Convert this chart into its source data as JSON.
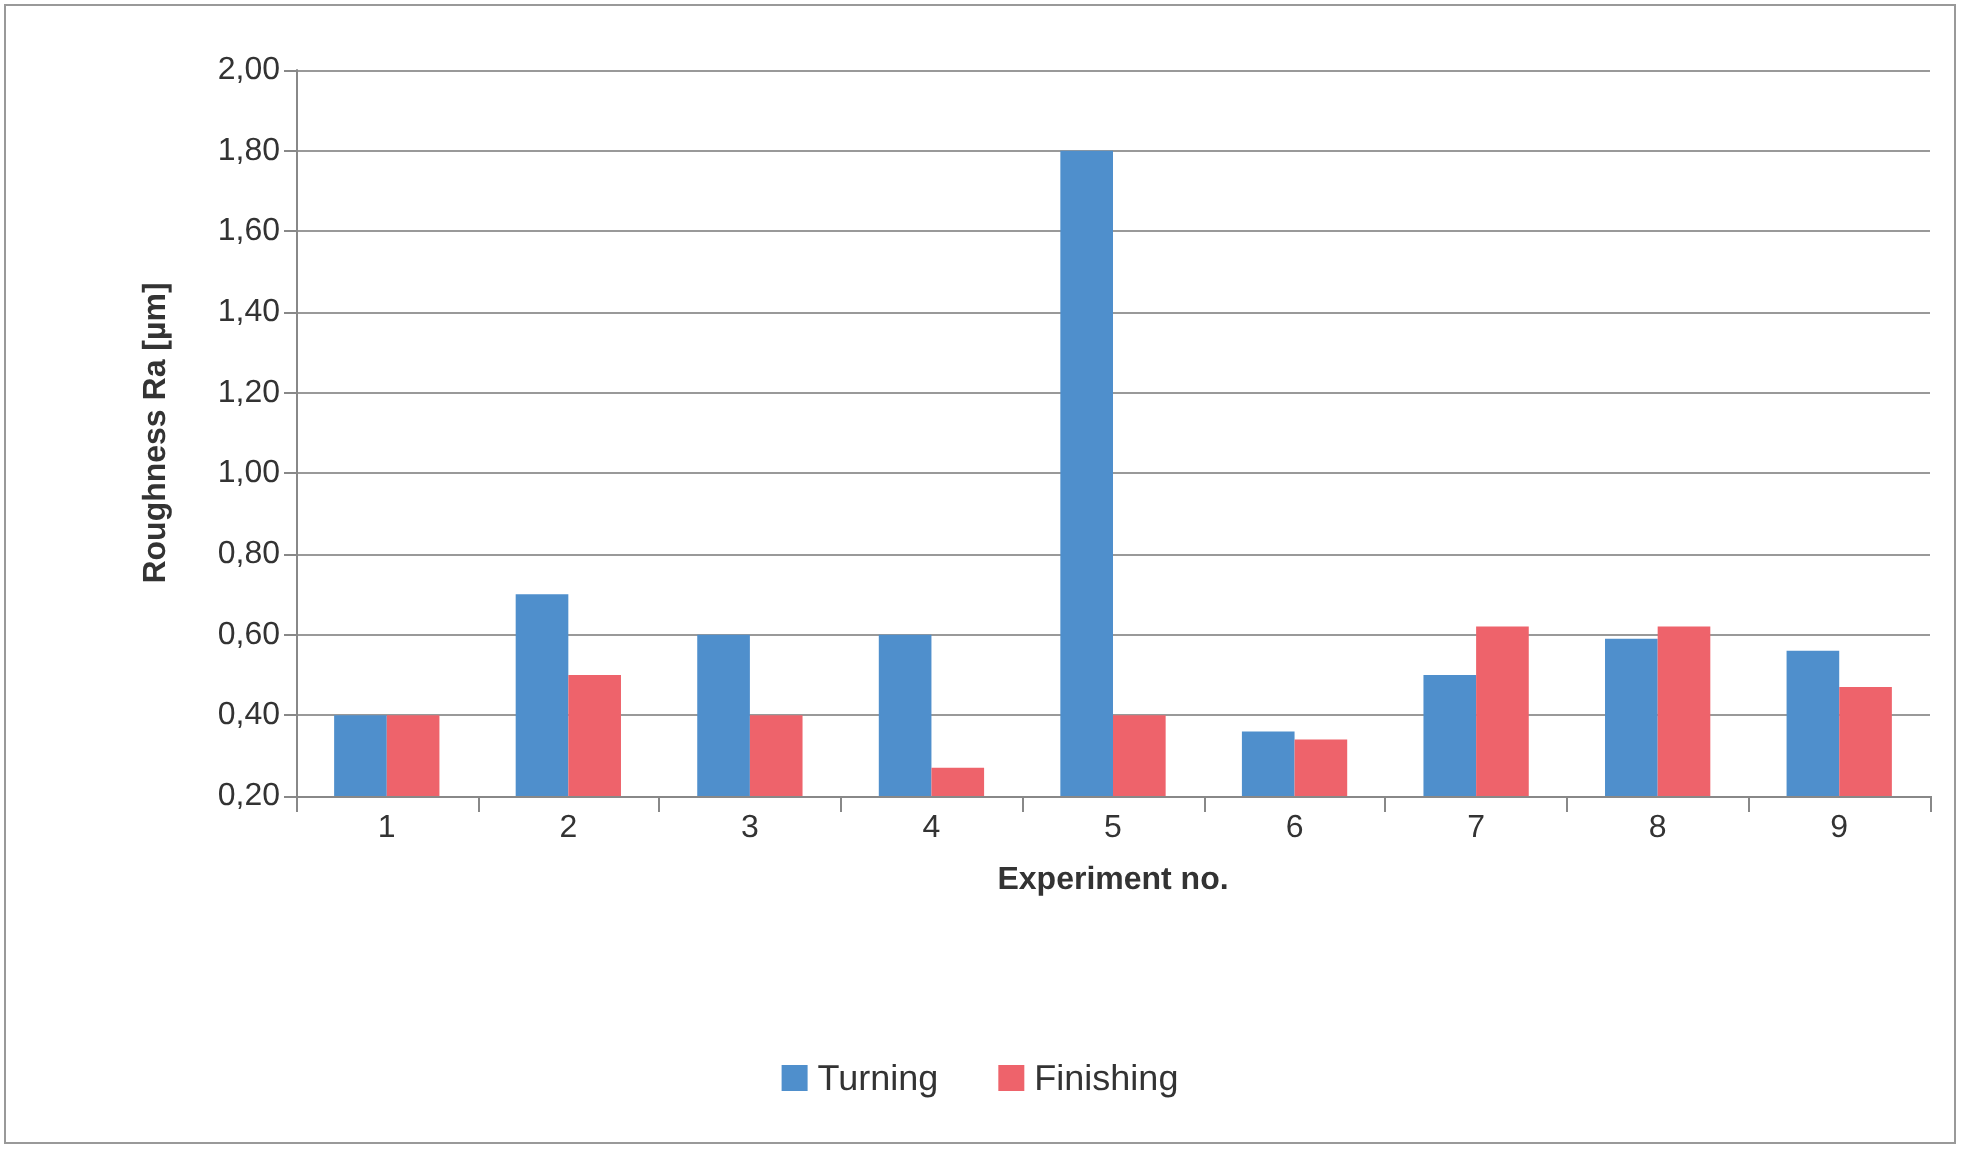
{
  "chart_data": {
    "type": "bar",
    "xlabel": "Experiment no.",
    "ylabel": "Roughness Ra [µm]",
    "categories": [
      "1",
      "2",
      "3",
      "4",
      "5",
      "6",
      "7",
      "8",
      "9"
    ],
    "series": [
      {
        "name": "Turning",
        "color": "#4f8fcc",
        "values": [
          0.4,
          0.7,
          0.6,
          0.6,
          1.8,
          0.36,
          0.5,
          0.59,
          0.56
        ]
      },
      {
        "name": "Finishing",
        "color": "#ee636b",
        "values": [
          0.4,
          0.5,
          0.4,
          0.27,
          0.4,
          0.34,
          0.62,
          0.62,
          0.47
        ]
      }
    ],
    "ylim": [
      0.2,
      2.0
    ],
    "yticks": [
      {
        "value": 0.2,
        "label": "0,20"
      },
      {
        "value": 0.4,
        "label": "0,40"
      },
      {
        "value": 0.6,
        "label": "0,60"
      },
      {
        "value": 0.8,
        "label": "0,80"
      },
      {
        "value": 1.0,
        "label": "1,00"
      },
      {
        "value": 1.2,
        "label": "1,20"
      },
      {
        "value": 1.4,
        "label": "1,40"
      },
      {
        "value": 1.6,
        "label": "1,60"
      },
      {
        "value": 1.8,
        "label": "1,80"
      },
      {
        "value": 2.0,
        "label": "2,00"
      }
    ],
    "grid": "y",
    "legend": "bottom"
  }
}
